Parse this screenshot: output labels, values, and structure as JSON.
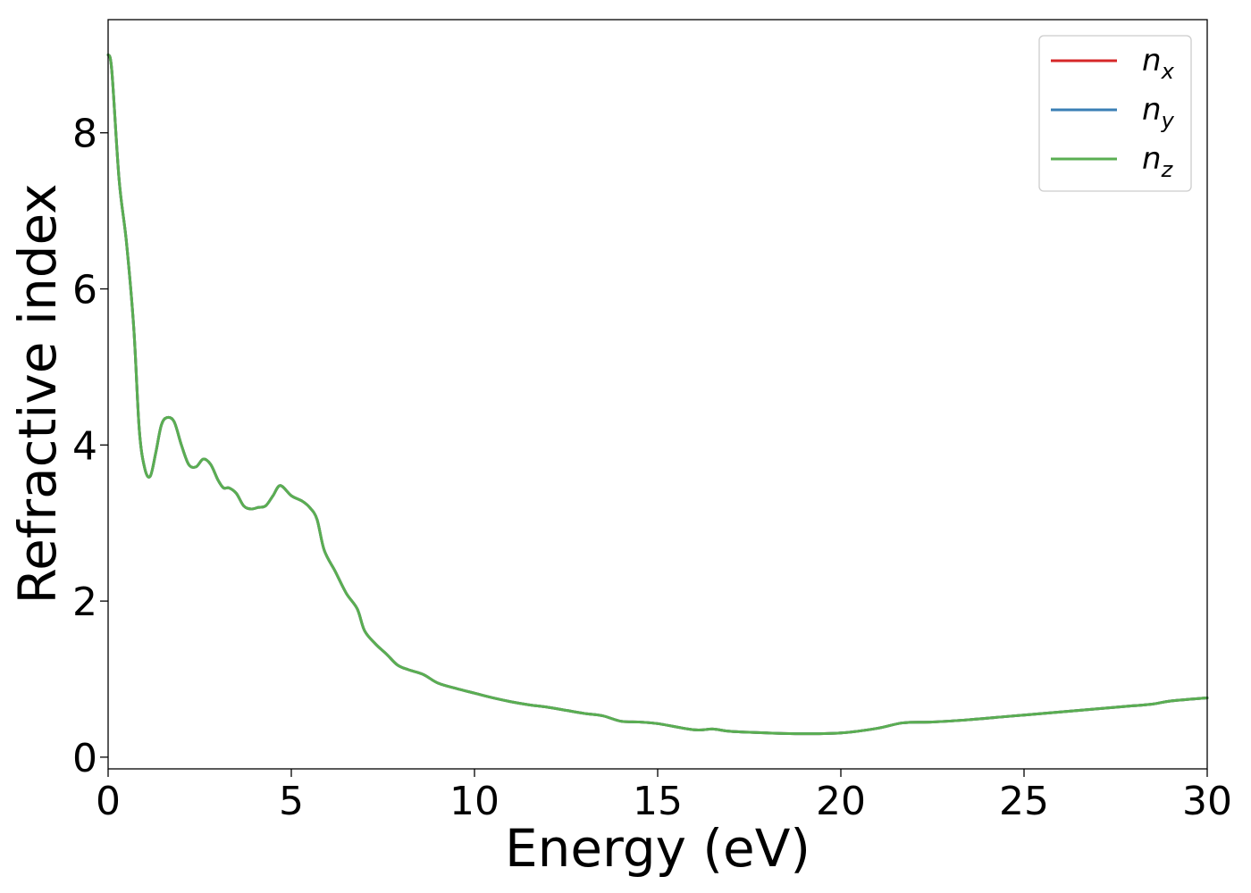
{
  "chart_data": {
    "type": "line",
    "title": "",
    "xlabel": "Energy (eV)",
    "ylabel": "Refractive index",
    "xlim": [
      0,
      30
    ],
    "ylim": [
      -0.15,
      9.45
    ],
    "xticks": [
      0,
      5,
      10,
      15,
      20,
      25,
      30
    ],
    "xtick_labels": [
      "0",
      "5",
      "10",
      "15",
      "20",
      "25",
      "30"
    ],
    "yticks": [
      0,
      2,
      4,
      6,
      8
    ],
    "ytick_labels": [
      "0",
      "2",
      "4",
      "6",
      "8"
    ],
    "grid": false,
    "legend": {
      "placement": "top-right",
      "entries": [
        {
          "base": "n",
          "sub": "x",
          "color": "#d62728"
        },
        {
          "base": "n",
          "sub": "y",
          "color": "#3a7fb5"
        },
        {
          "base": "n",
          "sub": "z",
          "color": "#5aae52"
        }
      ]
    },
    "x": [
      0,
      0.1,
      0.3,
      0.5,
      0.7,
      0.85,
      1.0,
      1.15,
      1.3,
      1.45,
      1.6,
      1.8,
      2.0,
      2.2,
      2.4,
      2.6,
      2.8,
      3.0,
      3.15,
      3.3,
      3.5,
      3.7,
      3.9,
      4.1,
      4.3,
      4.5,
      4.7,
      5.0,
      5.3,
      5.5,
      5.7,
      5.9,
      6.2,
      6.5,
      6.8,
      7.0,
      7.3,
      7.6,
      7.9,
      8.2,
      8.6,
      9.0,
      9.5,
      10.0,
      10.5,
      11.0,
      11.5,
      12.0,
      12.5,
      13.0,
      13.5,
      14.0,
      14.5,
      15.0,
      16.0,
      16.5,
      17.0,
      18.0,
      19.0,
      20.0,
      21.0,
      21.7,
      22.5,
      23.5,
      24.5,
      25.5,
      26.5,
      27.5,
      28.5,
      29.0,
      30.0
    ],
    "series": [
      {
        "name": "n_x",
        "color": "#d62728",
        "values": [
          9.0,
          8.8,
          7.4,
          6.6,
          5.5,
          4.2,
          3.7,
          3.6,
          3.9,
          4.25,
          4.35,
          4.3,
          4.0,
          3.75,
          3.72,
          3.82,
          3.75,
          3.55,
          3.45,
          3.45,
          3.38,
          3.22,
          3.18,
          3.2,
          3.22,
          3.35,
          3.48,
          3.35,
          3.28,
          3.2,
          3.05,
          2.65,
          2.38,
          2.1,
          1.9,
          1.62,
          1.45,
          1.32,
          1.18,
          1.12,
          1.06,
          0.95,
          0.88,
          0.82,
          0.76,
          0.71,
          0.67,
          0.64,
          0.6,
          0.56,
          0.53,
          0.46,
          0.45,
          0.43,
          0.35,
          0.36,
          0.33,
          0.31,
          0.3,
          0.31,
          0.37,
          0.44,
          0.45,
          0.48,
          0.52,
          0.56,
          0.6,
          0.64,
          0.68,
          0.72,
          0.76
        ]
      },
      {
        "name": "n_y",
        "color": "#3a7fb5",
        "values": [
          9.0,
          8.8,
          7.4,
          6.6,
          5.5,
          4.2,
          3.7,
          3.6,
          3.9,
          4.25,
          4.35,
          4.3,
          4.0,
          3.75,
          3.72,
          3.82,
          3.75,
          3.55,
          3.45,
          3.45,
          3.38,
          3.22,
          3.18,
          3.2,
          3.22,
          3.35,
          3.48,
          3.35,
          3.28,
          3.2,
          3.05,
          2.65,
          2.38,
          2.1,
          1.9,
          1.62,
          1.45,
          1.32,
          1.18,
          1.12,
          1.06,
          0.95,
          0.88,
          0.82,
          0.76,
          0.71,
          0.67,
          0.64,
          0.6,
          0.56,
          0.53,
          0.46,
          0.45,
          0.43,
          0.35,
          0.36,
          0.33,
          0.31,
          0.3,
          0.31,
          0.37,
          0.44,
          0.45,
          0.48,
          0.52,
          0.56,
          0.6,
          0.64,
          0.68,
          0.72,
          0.76
        ]
      },
      {
        "name": "n_z",
        "color": "#5aae52",
        "values": [
          9.0,
          8.8,
          7.4,
          6.6,
          5.5,
          4.2,
          3.7,
          3.6,
          3.9,
          4.25,
          4.35,
          4.3,
          4.0,
          3.75,
          3.72,
          3.82,
          3.75,
          3.55,
          3.45,
          3.45,
          3.38,
          3.22,
          3.18,
          3.2,
          3.22,
          3.35,
          3.48,
          3.35,
          3.28,
          3.2,
          3.05,
          2.65,
          2.38,
          2.1,
          1.9,
          1.62,
          1.45,
          1.32,
          1.18,
          1.12,
          1.06,
          0.95,
          0.88,
          0.82,
          0.76,
          0.71,
          0.67,
          0.64,
          0.6,
          0.56,
          0.53,
          0.46,
          0.45,
          0.43,
          0.35,
          0.36,
          0.33,
          0.31,
          0.3,
          0.31,
          0.37,
          0.44,
          0.45,
          0.48,
          0.52,
          0.56,
          0.6,
          0.64,
          0.68,
          0.72,
          0.76
        ]
      }
    ]
  }
}
